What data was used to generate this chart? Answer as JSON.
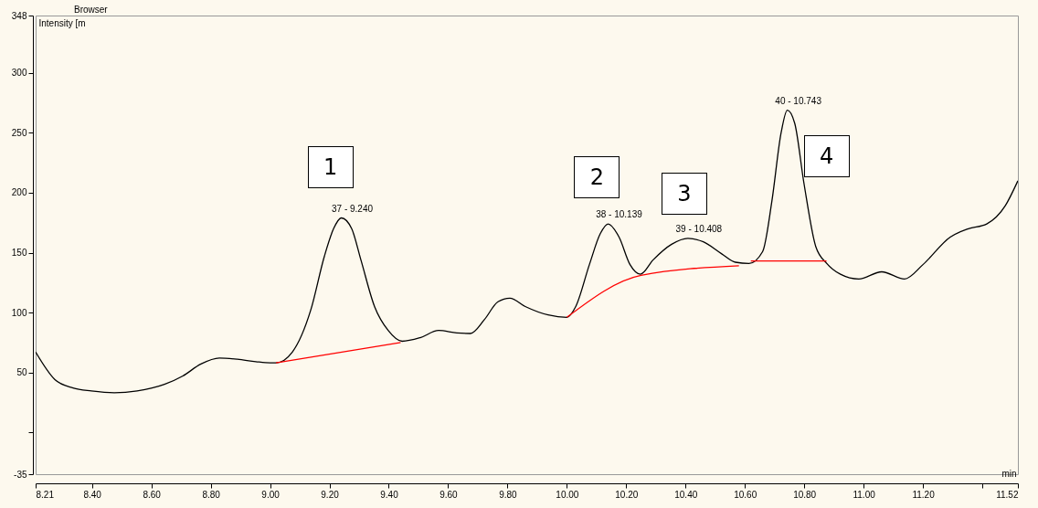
{
  "chart_data": {
    "type": "line",
    "xlabel": "min",
    "ylabel": "Intensity [m",
    "xlim": [
      8.21,
      11.52
    ],
    "ylim": [
      -35,
      348
    ],
    "xticks": [
      8.21,
      {
        "value": 8.4,
        "label": "8.40"
      },
      {
        "value": 8.6,
        "label": "8.60"
      },
      {
        "value": 8.8,
        "label": "8.80"
      },
      {
        "value": 9.0,
        "label": "9.00"
      },
      {
        "value": 9.2,
        "label": "9.20"
      },
      {
        "value": 9.4,
        "label": "9.40"
      },
      {
        "value": 9.6,
        "label": "9.60"
      },
      {
        "value": 9.8,
        "label": "9.80"
      },
      {
        "value": 10.0,
        "label": "10.00"
      },
      {
        "value": 10.2,
        "label": "10.20"
      },
      {
        "value": 10.4,
        "label": "10.40"
      },
      {
        "value": 10.6,
        "label": "10.60"
      },
      {
        "value": 10.8,
        "label": "10.80"
      },
      {
        "value": 11.0,
        "label": "11.00"
      },
      {
        "value": 11.2,
        "label": "11.20"
      },
      {
        "value": 11.4,
        "label": null
      },
      11.52
    ],
    "yticks": [
      -35,
      {
        "value": 0,
        "label": null
      },
      50,
      100,
      150,
      200,
      250,
      300,
      348
    ],
    "line_style": "solid",
    "series": [
      {
        "color": "#000000",
        "x": [
          8.21,
          8.275,
          8.336,
          8.398,
          8.475,
          8.552,
          8.644,
          8.706,
          8.767,
          8.829,
          8.89,
          8.952,
          9.0,
          9.02,
          9.075,
          9.137,
          9.183,
          9.214,
          9.24,
          9.275,
          9.306,
          9.352,
          9.398,
          9.445,
          9.506,
          9.568,
          9.629,
          9.675,
          9.722,
          9.768,
          9.808,
          9.86,
          9.937,
          10.0,
          10.03,
          10.076,
          10.113,
          10.139,
          10.176,
          10.213,
          10.248,
          10.291,
          10.353,
          10.408,
          10.46,
          10.522,
          10.568,
          10.614,
          10.66,
          10.691,
          10.722,
          10.743,
          10.768,
          10.799,
          10.839,
          10.876,
          10.922,
          10.984,
          11.061,
          11.138,
          11.2,
          11.292,
          11.353,
          11.415,
          11.477,
          11.52
        ],
        "values": [
          67,
          44,
          37,
          34.5,
          33,
          34.5,
          40,
          47,
          57,
          62,
          61,
          59,
          58,
          58,
          67,
          102,
          147,
          170,
          179,
          170,
          144,
          105,
          85,
          76,
          79,
          85,
          83,
          82.5,
          94,
          109,
          112,
          105,
          98,
          96,
          105,
          140,
          166,
          174,
          163,
          140,
          132,
          144,
          157,
          162,
          159,
          149,
          142,
          141,
          151,
          193,
          250,
          269,
          258,
          208,
          155,
          141,
          132,
          128,
          134,
          128,
          140,
          163,
          170,
          174,
          189,
          210
        ]
      },
      {
        "color": "#ff0000",
        "x": [
          9.02,
          9.44,
          9.7,
          10.0,
          10.25,
          10.58,
          10.6,
          10.62,
          10.875
        ],
        "values": [
          58,
          75,
          null,
          96,
          131,
          139,
          null,
          143,
          143
        ]
      }
    ],
    "annotations": [
      {
        "text": "37 - 9.240",
        "x": 9.24,
        "y": 179
      },
      {
        "text": "38 - 10.139",
        "x": 10.139,
        "y": 174
      },
      {
        "text": "39 - 10.408",
        "x": 10.408,
        "y": 162
      },
      {
        "text": "40 - 10.743",
        "x": 10.743,
        "y": 269
      },
      "Browser",
      "1",
      "2",
      "3",
      "4"
    ]
  }
}
